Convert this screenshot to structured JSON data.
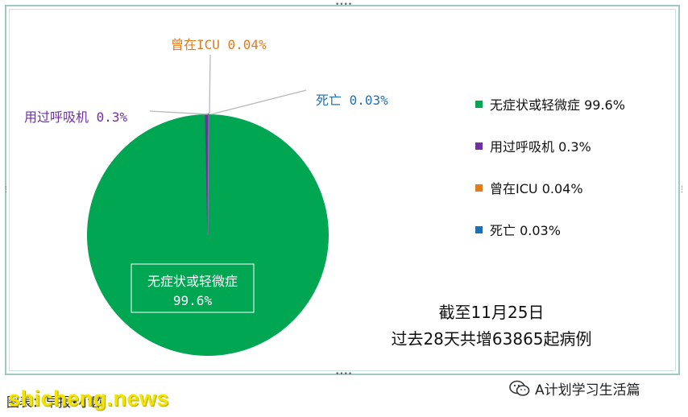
{
  "chart_data": {
    "type": "pie",
    "categories": [
      "无症状或轻微症",
      "用过呼吸机",
      "曾在ICU",
      "死亡"
    ],
    "values": [
      99.6,
      0.3,
      0.04,
      0.03
    ],
    "colors": [
      "#00a651",
      "#7030a0",
      "#e07b1f",
      "#1f6fb5"
    ],
    "data_labels": [
      {
        "name": "无症状或轻微症",
        "value": "99.6%"
      },
      {
        "name": "用过呼吸机",
        "value": "0.3%"
      },
      {
        "name": "曾在ICU",
        "value": "0.04%"
      },
      {
        "name": "死亡",
        "value": "0.03%"
      }
    ],
    "legend_position": "right",
    "legend": [
      "无症状或轻微症 99.6%",
      "用过呼吸机 0.3%",
      "曾在ICU 0.04%",
      "死亡 0.03%"
    ]
  },
  "note_lines": [
    "截至11月25日",
    "过去28天共增63865起病例"
  ],
  "source": "图表：早报•小欧",
  "watermark": "shicheng.news",
  "wechat_account": "A计划学习生活篇"
}
